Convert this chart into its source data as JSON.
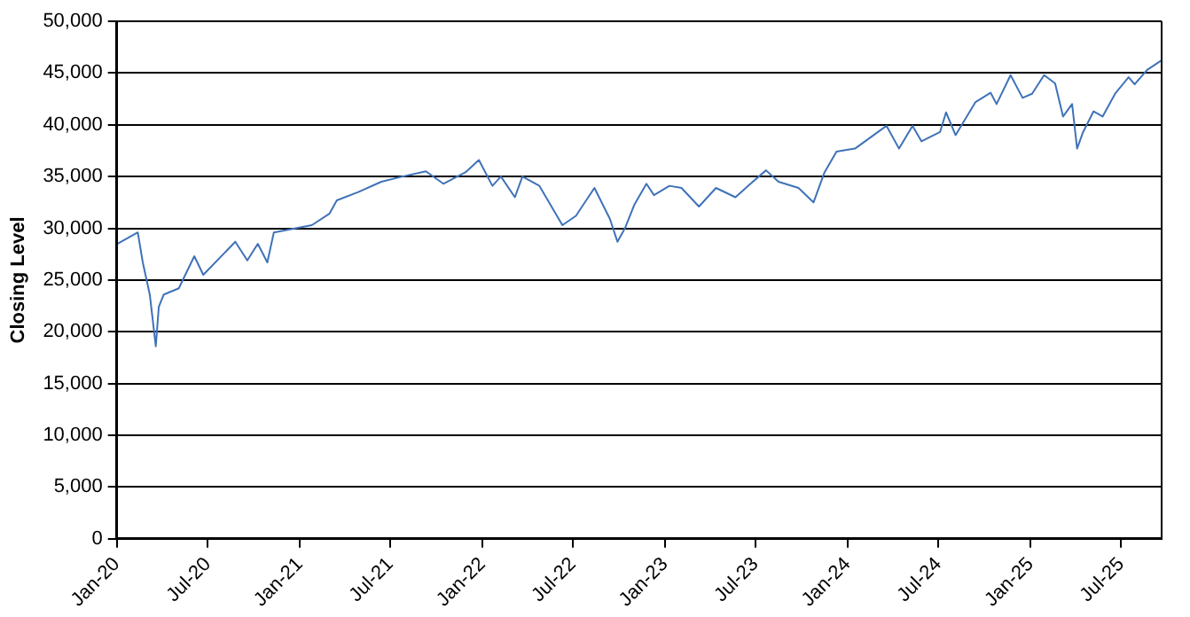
{
  "chart_data": {
    "type": "line",
    "ylabel": "Closing Level",
    "x": [
      "2020-01-02",
      "2020-02-12",
      "2020-02-22",
      "2020-03-07",
      "2020-03-19",
      "2020-03-25",
      "2020-04-04",
      "2020-05-04",
      "2020-06-04",
      "2020-06-22",
      "2020-08-25",
      "2020-09-18",
      "2020-10-09",
      "2020-10-28",
      "2020-11-10",
      "2021-01-25",
      "2021-03-01",
      "2021-03-16",
      "2021-04-28",
      "2021-06-13",
      "2021-07-25",
      "2021-09-10",
      "2021-10-15",
      "2021-11-28",
      "2021-12-25",
      "2022-01-21",
      "2022-02-07",
      "2022-03-07",
      "2022-03-22",
      "2022-04-25",
      "2022-06-10",
      "2022-07-07",
      "2022-08-13",
      "2022-09-13",
      "2022-09-28",
      "2022-10-13",
      "2022-11-01",
      "2022-11-25",
      "2022-12-10",
      "2023-01-10",
      "2023-02-03",
      "2023-03-10",
      "2023-04-13",
      "2023-05-22",
      "2023-06-16",
      "2023-07-22",
      "2023-08-16",
      "2023-09-25",
      "2023-10-25",
      "2023-11-16",
      "2023-12-10",
      "2024-01-16",
      "2024-03-19",
      "2024-04-13",
      "2024-05-10",
      "2024-05-28",
      "2024-07-04",
      "2024-07-16",
      "2024-08-04",
      "2024-09-13",
      "2024-10-13",
      "2024-10-25",
      "2024-11-22",
      "2024-12-16",
      "2025-01-04",
      "2025-01-28",
      "2025-02-19",
      "2025-03-07",
      "2025-03-25",
      "2025-04-04",
      "2025-04-16",
      "2025-05-07",
      "2025-05-25",
      "2025-06-19",
      "2025-07-16",
      "2025-07-28",
      "2025-08-22",
      "2025-09-19"
    ],
    "series": [
      {
        "color": "#3f72b8",
        "values": [
          28500,
          29600,
          26700,
          23600,
          18600,
          22400,
          23600,
          24200,
          27300,
          25500,
          28700,
          26900,
          28500,
          26700,
          29600,
          30300,
          31400,
          32700,
          33500,
          34500,
          35000,
          35500,
          34300,
          35400,
          36600,
          34100,
          35000,
          33000,
          35000,
          34100,
          30300,
          31200,
          33900,
          30900,
          28700,
          30000,
          32300,
          34300,
          33200,
          34100,
          33900,
          32100,
          33900,
          33000,
          34100,
          35600,
          34500,
          33900,
          32500,
          35400,
          37400,
          37700,
          39900,
          37700,
          39900,
          38400,
          39300,
          41200,
          39000,
          42200,
          43100,
          42000,
          44800,
          42600,
          43000,
          44800,
          44000,
          40800,
          42000,
          37700,
          39300,
          41300,
          40800,
          43000,
          44600,
          43900,
          45300,
          46200
        ]
      }
    ],
    "xlim": [
      "2020-01-01",
      "2025-09-20"
    ],
    "xticks": [
      {
        "value": "2020-01-01",
        "label": "Jan-20"
      },
      {
        "value": "2020-07-01",
        "label": "Jul-20"
      },
      {
        "value": "2021-01-01",
        "label": "Jan-21"
      },
      {
        "value": "2021-07-01",
        "label": "Jul-21"
      },
      {
        "value": "2022-01-01",
        "label": "Jan-22"
      },
      {
        "value": "2022-07-01",
        "label": "Jul-22"
      },
      {
        "value": "2023-01-01",
        "label": "Jan-23"
      },
      {
        "value": "2023-07-01",
        "label": "Jul-23"
      },
      {
        "value": "2024-01-01",
        "label": "Jan-24"
      },
      {
        "value": "2024-07-01",
        "label": "Jul-24"
      },
      {
        "value": "2025-01-01",
        "label": "Jan-25"
      },
      {
        "value": "2025-07-01",
        "label": "Jul-25"
      }
    ],
    "ylim": [
      0,
      50000
    ],
    "yticks": [
      {
        "value": 0,
        "label": "0"
      },
      {
        "value": 5000,
        "label": "5,000"
      },
      {
        "value": 10000,
        "label": "10,000"
      },
      {
        "value": 15000,
        "label": "15,000"
      },
      {
        "value": 20000,
        "label": "20,000"
      },
      {
        "value": 25000,
        "label": "25,000"
      },
      {
        "value": 30000,
        "label": "30,000"
      },
      {
        "value": 35000,
        "label": "35,000"
      },
      {
        "value": 40000,
        "label": "40,000"
      },
      {
        "value": 45000,
        "label": "45,000"
      },
      {
        "value": 50000,
        "label": "50,000"
      }
    ],
    "grid": "y",
    "legend": false,
    "marker": "none",
    "line_style": "solid"
  }
}
